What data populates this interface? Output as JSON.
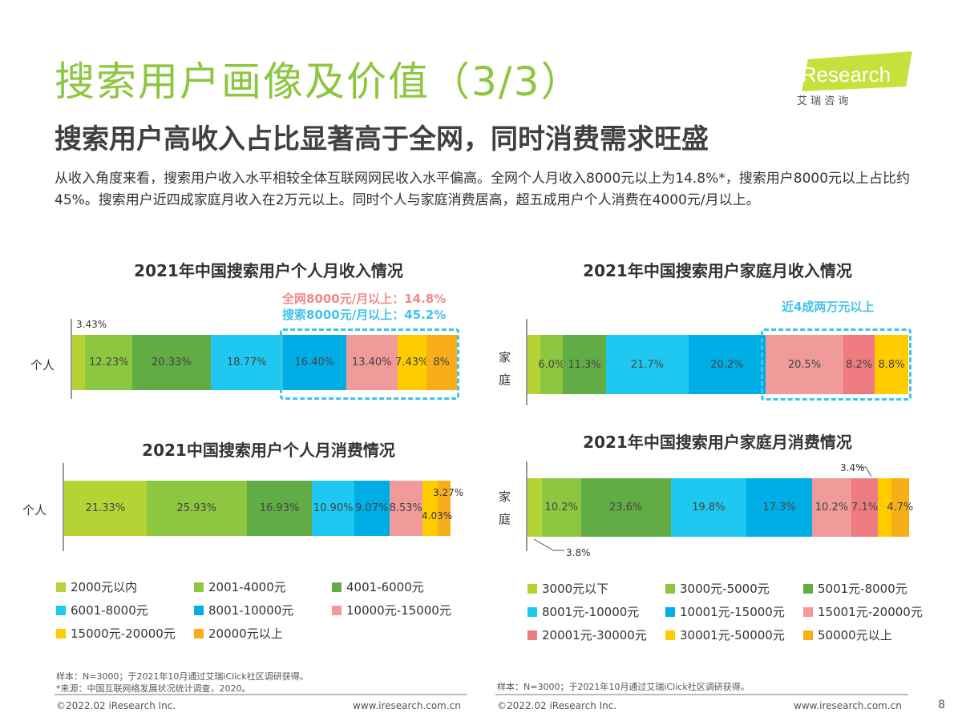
{
  "header": {
    "title": "搜索用户画像及价值（3/3）",
    "subtitle": "搜索用户高收入占比显著高于全网，同时消费需求旺盛",
    "description": "从收入角度来看，搜索用户收入水平相较全体互联网网民收入水平偏高。全网个人月收入8000元以上为14.8%*，搜索用户8000元以上占比约45%。搜索用户近四成家庭月收入在2万元以上。同时个人与家庭消费居高，超五成用户个人消费在4000元/月以上。"
  },
  "logo": {
    "text": "iResearch",
    "sub": "艾 瑞 咨 询",
    "accent": "#C8E03C"
  },
  "chart_data": [
    {
      "type": "bar",
      "title": "2021年中国搜索用户个人月收入情况",
      "categories": [
        "个人"
      ],
      "stacked": true,
      "orientation": "horizontal",
      "series": [
        {
          "name": "2000元以内",
          "value": 3.43,
          "label": "3.43%",
          "color": "#B5D334"
        },
        {
          "name": "2001-4000元",
          "value": 12.23,
          "label": "12.23%",
          "color": "#8DC63F"
        },
        {
          "name": "4001-6000元",
          "value": 20.33,
          "label": "20.33%",
          "color": "#62AC46"
        },
        {
          "name": "6001-8000元",
          "value": 18.77,
          "label": "18.77%",
          "color": "#1EC8F0"
        },
        {
          "name": "8001-10000元",
          "value": 16.4,
          "label": "16.40%",
          "color": "#00AEE6"
        },
        {
          "name": "10000元-15000元",
          "value": 13.4,
          "label": "13.40%",
          "color": "#F09A9A"
        },
        {
          "name": "15000元-20000元",
          "value": 7.43,
          "label": "7.43%",
          "color": "#FFCC00"
        },
        {
          "name": "20000元以上",
          "value": 8,
          "label": "8%",
          "color": "#F8AE1A"
        }
      ],
      "annotations": [
        "全网8000元/月以上：14.8%",
        "搜索8000元/月以上：45.2%"
      ]
    },
    {
      "type": "bar",
      "title": "2021中国搜索用户个人月消费情况",
      "categories": [
        "个人"
      ],
      "stacked": true,
      "orientation": "horizontal",
      "series": [
        {
          "name": "2000元以内",
          "value": 21.33,
          "label": "21.33%",
          "color": "#B5D334"
        },
        {
          "name": "2001-4000元",
          "value": 25.93,
          "label": "25.93%",
          "color": "#8DC63F"
        },
        {
          "name": "4001-6000元",
          "value": 16.93,
          "label": "16.93%",
          "color": "#62AC46"
        },
        {
          "name": "6001-8000元",
          "value": 10.9,
          "label": "10.90%",
          "color": "#1EC8F0"
        },
        {
          "name": "8001-10000元",
          "value": 9.07,
          "label": "9.07%",
          "color": "#00AEE6"
        },
        {
          "name": "10000元-15000元",
          "value": 8.53,
          "label": "8.53%",
          "color": "#F09A9A"
        },
        {
          "name": "15000元-20000元",
          "value": 4.03,
          "label": "4.03%",
          "color": "#FFCC00"
        },
        {
          "name": "20000元以上",
          "value": 3.27,
          "label": "3.27%",
          "color": "#F8AE1A"
        }
      ]
    },
    {
      "type": "bar",
      "title": "2021年中国搜索用户家庭月收入情况",
      "categories": [
        "家庭"
      ],
      "stacked": true,
      "orientation": "horizontal",
      "series": [
        {
          "name": "3000元以下",
          "value": 3.3,
          "label": "",
          "color": "#B5D334"
        },
        {
          "name": "3000元-5000元",
          "value": 6.0,
          "label": "6.0%",
          "color": "#8DC63F"
        },
        {
          "name": "5001元-8000元",
          "value": 11.3,
          "label": "11.3%",
          "color": "#62AC46"
        },
        {
          "name": "8001元-10000元",
          "value": 21.7,
          "label": "21.7%",
          "color": "#1EC8F0"
        },
        {
          "name": "10001元-15000元",
          "value": 20.2,
          "label": "20.2%",
          "color": "#00AEE6"
        },
        {
          "name": "15001元-20000元",
          "value": 20.5,
          "label": "20.5%",
          "color": "#F09A9A"
        },
        {
          "name": "20001元-30000元",
          "value": 8.2,
          "label": "8.2%",
          "color": "#EE7B80"
        },
        {
          "name": "30001元-50000元",
          "value": 8.8,
          "label": "8.8%",
          "color": "#FFCC00"
        }
      ],
      "annotations": [
        "近4成两万元以上"
      ]
    },
    {
      "type": "bar",
      "title": "2021年中国搜索用户家庭月消费情况",
      "categories": [
        "家庭"
      ],
      "stacked": true,
      "orientation": "horizontal",
      "series": [
        {
          "name": "3000元以下",
          "value": 3.8,
          "label": "3.8%",
          "color": "#B5D334"
        },
        {
          "name": "3000元-5000元",
          "value": 10.2,
          "label": "10.2%",
          "color": "#8DC63F"
        },
        {
          "name": "5001元-8000元",
          "value": 23.6,
          "label": "23.6%",
          "color": "#62AC46"
        },
        {
          "name": "8001元-10000元",
          "value": 19.8,
          "label": "19.8%",
          "color": "#1EC8F0"
        },
        {
          "name": "10001元-15000元",
          "value": 17.3,
          "label": "17.3%",
          "color": "#00AEE6"
        },
        {
          "name": "15001元-20000元",
          "value": 10.2,
          "label": "10.2%",
          "color": "#F09A9A"
        },
        {
          "name": "20001元-30000元",
          "value": 7.1,
          "label": "7.1%",
          "color": "#EE7B80"
        },
        {
          "name": "30001元-50000元",
          "value": 3.4,
          "label": "3.4%",
          "color": "#FFCC00"
        },
        {
          "name": "50000元以上",
          "value": 4.7,
          "label": "4.7%",
          "color": "#F8AE1A"
        }
      ]
    }
  ],
  "legend_left": [
    {
      "name": "2000元以内",
      "color": "#B5D334"
    },
    {
      "name": "2001-4000元",
      "color": "#8DC63F"
    },
    {
      "name": "4001-6000元",
      "color": "#62AC46"
    },
    {
      "name": "6001-8000元",
      "color": "#1EC8F0"
    },
    {
      "name": "8001-10000元",
      "color": "#00AEE6"
    },
    {
      "name": "10000元-15000元",
      "color": "#F09A9A"
    },
    {
      "name": "15000元-20000元",
      "color": "#FFCC00"
    },
    {
      "name": "20000元以上",
      "color": "#F8AE1A"
    }
  ],
  "legend_right": [
    {
      "name": "3000元以下",
      "color": "#B5D334"
    },
    {
      "name": "3000元-5000元",
      "color": "#8DC63F"
    },
    {
      "name": "5001元-8000元",
      "color": "#62AC46"
    },
    {
      "name": "8001元-10000元",
      "color": "#1EC8F0"
    },
    {
      "name": "10001元-15000元",
      "color": "#00AEE6"
    },
    {
      "name": "15001元-20000元",
      "color": "#F09A9A"
    },
    {
      "name": "20001元-30000元",
      "color": "#EE7B80"
    },
    {
      "name": "30001元-50000元",
      "color": "#FFCC00"
    },
    {
      "name": "50000元以上",
      "color": "#F8AE1A"
    }
  ],
  "notes": {
    "left1": "样本：N=3000；于2021年10月通过艾瑞iClick社区调研获得。",
    "left2": "*来源：中国互联网络发展状况统计调查，2020。",
    "right1": "样本：N=3000；于2021年10月通过艾瑞iClick社区调研获得。"
  },
  "footer": {
    "copyright": "©2022.02 iResearch Inc.",
    "url": "www.iresearch.com.cn",
    "page": "8"
  }
}
